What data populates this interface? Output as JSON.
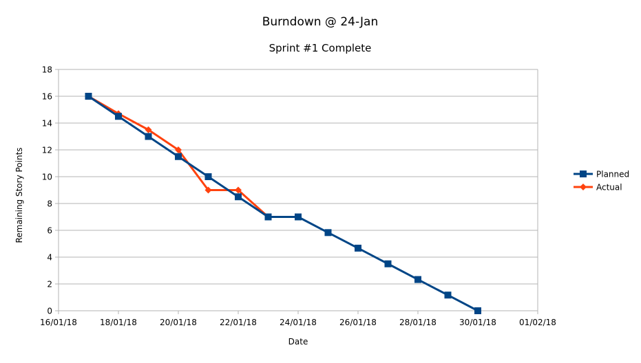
{
  "chart_data": {
    "type": "line",
    "title": "Burndown @ 24-Jan",
    "subtitle": "Sprint #1 Complete",
    "xlabel": "Date",
    "ylabel": "Remaining Story Points",
    "x_ticks": [
      "16/01/18",
      "18/01/18",
      "20/01/18",
      "22/01/18",
      "24/01/18",
      "26/01/18",
      "28/01/18",
      "30/01/18",
      "01/02/18"
    ],
    "xlim": [
      "16/01/18",
      "01/02/18"
    ],
    "ylim": [
      0,
      18
    ],
    "y_ticks": [
      0,
      2,
      4,
      6,
      8,
      10,
      12,
      14,
      16,
      18
    ],
    "grid": "horizontal",
    "legend_position": "right",
    "series": [
      {
        "name": "Planned",
        "color": "#004586",
        "marker": "square",
        "x": [
          "17/01/18",
          "18/01/18",
          "19/01/18",
          "20/01/18",
          "21/01/18",
          "22/01/18",
          "23/01/18",
          "24/01/18",
          "25/01/18",
          "26/01/18",
          "27/01/18",
          "28/01/18",
          "29/01/18",
          "30/01/18"
        ],
        "values": [
          16,
          14.5,
          13,
          11.5,
          10,
          8.5,
          7,
          7,
          5.83,
          4.67,
          3.5,
          2.33,
          1.17,
          0
        ]
      },
      {
        "name": "Actual",
        "color": "#ff420e",
        "marker": "diamond",
        "x": [
          "17/01/18",
          "18/01/18",
          "19/01/18",
          "20/01/18",
          "21/01/18",
          "22/01/18",
          "23/01/18"
        ],
        "values": [
          16,
          14.7,
          13.5,
          12,
          9,
          9,
          7
        ]
      }
    ]
  }
}
